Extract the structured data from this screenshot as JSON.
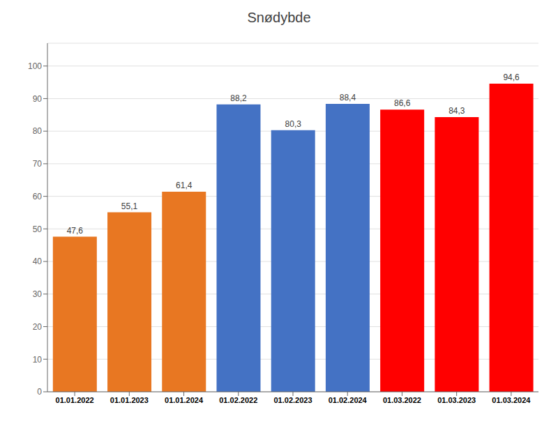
{
  "chart_data": {
    "type": "bar",
    "title": "Snødybde",
    "categories": [
      "01.01.2022",
      "01.01.2023",
      "01.01.2024",
      "01.02.2022",
      "01.02.2023",
      "01.02.2024",
      "01.03.2022",
      "01.03.2023",
      "01.03.2024"
    ],
    "values": [
      47.6,
      55.1,
      61.4,
      88.2,
      80.3,
      88.4,
      86.6,
      84.3,
      94.6
    ],
    "value_labels": [
      "47,6",
      "55,1",
      "61,4",
      "88,2",
      "80,3",
      "88,4",
      "86,6",
      "84,3",
      "94,6"
    ],
    "data_labels": true,
    "colors": [
      "#E87722",
      "#E87722",
      "#E87722",
      "#4472C4",
      "#4472C4",
      "#4472C4",
      "#FF0000",
      "#FF0000",
      "#FF0000"
    ],
    "ylim": [
      0,
      107
    ],
    "yticks": [
      0,
      10,
      20,
      30,
      40,
      50,
      60,
      70,
      80,
      90,
      100
    ],
    "grid": true
  }
}
